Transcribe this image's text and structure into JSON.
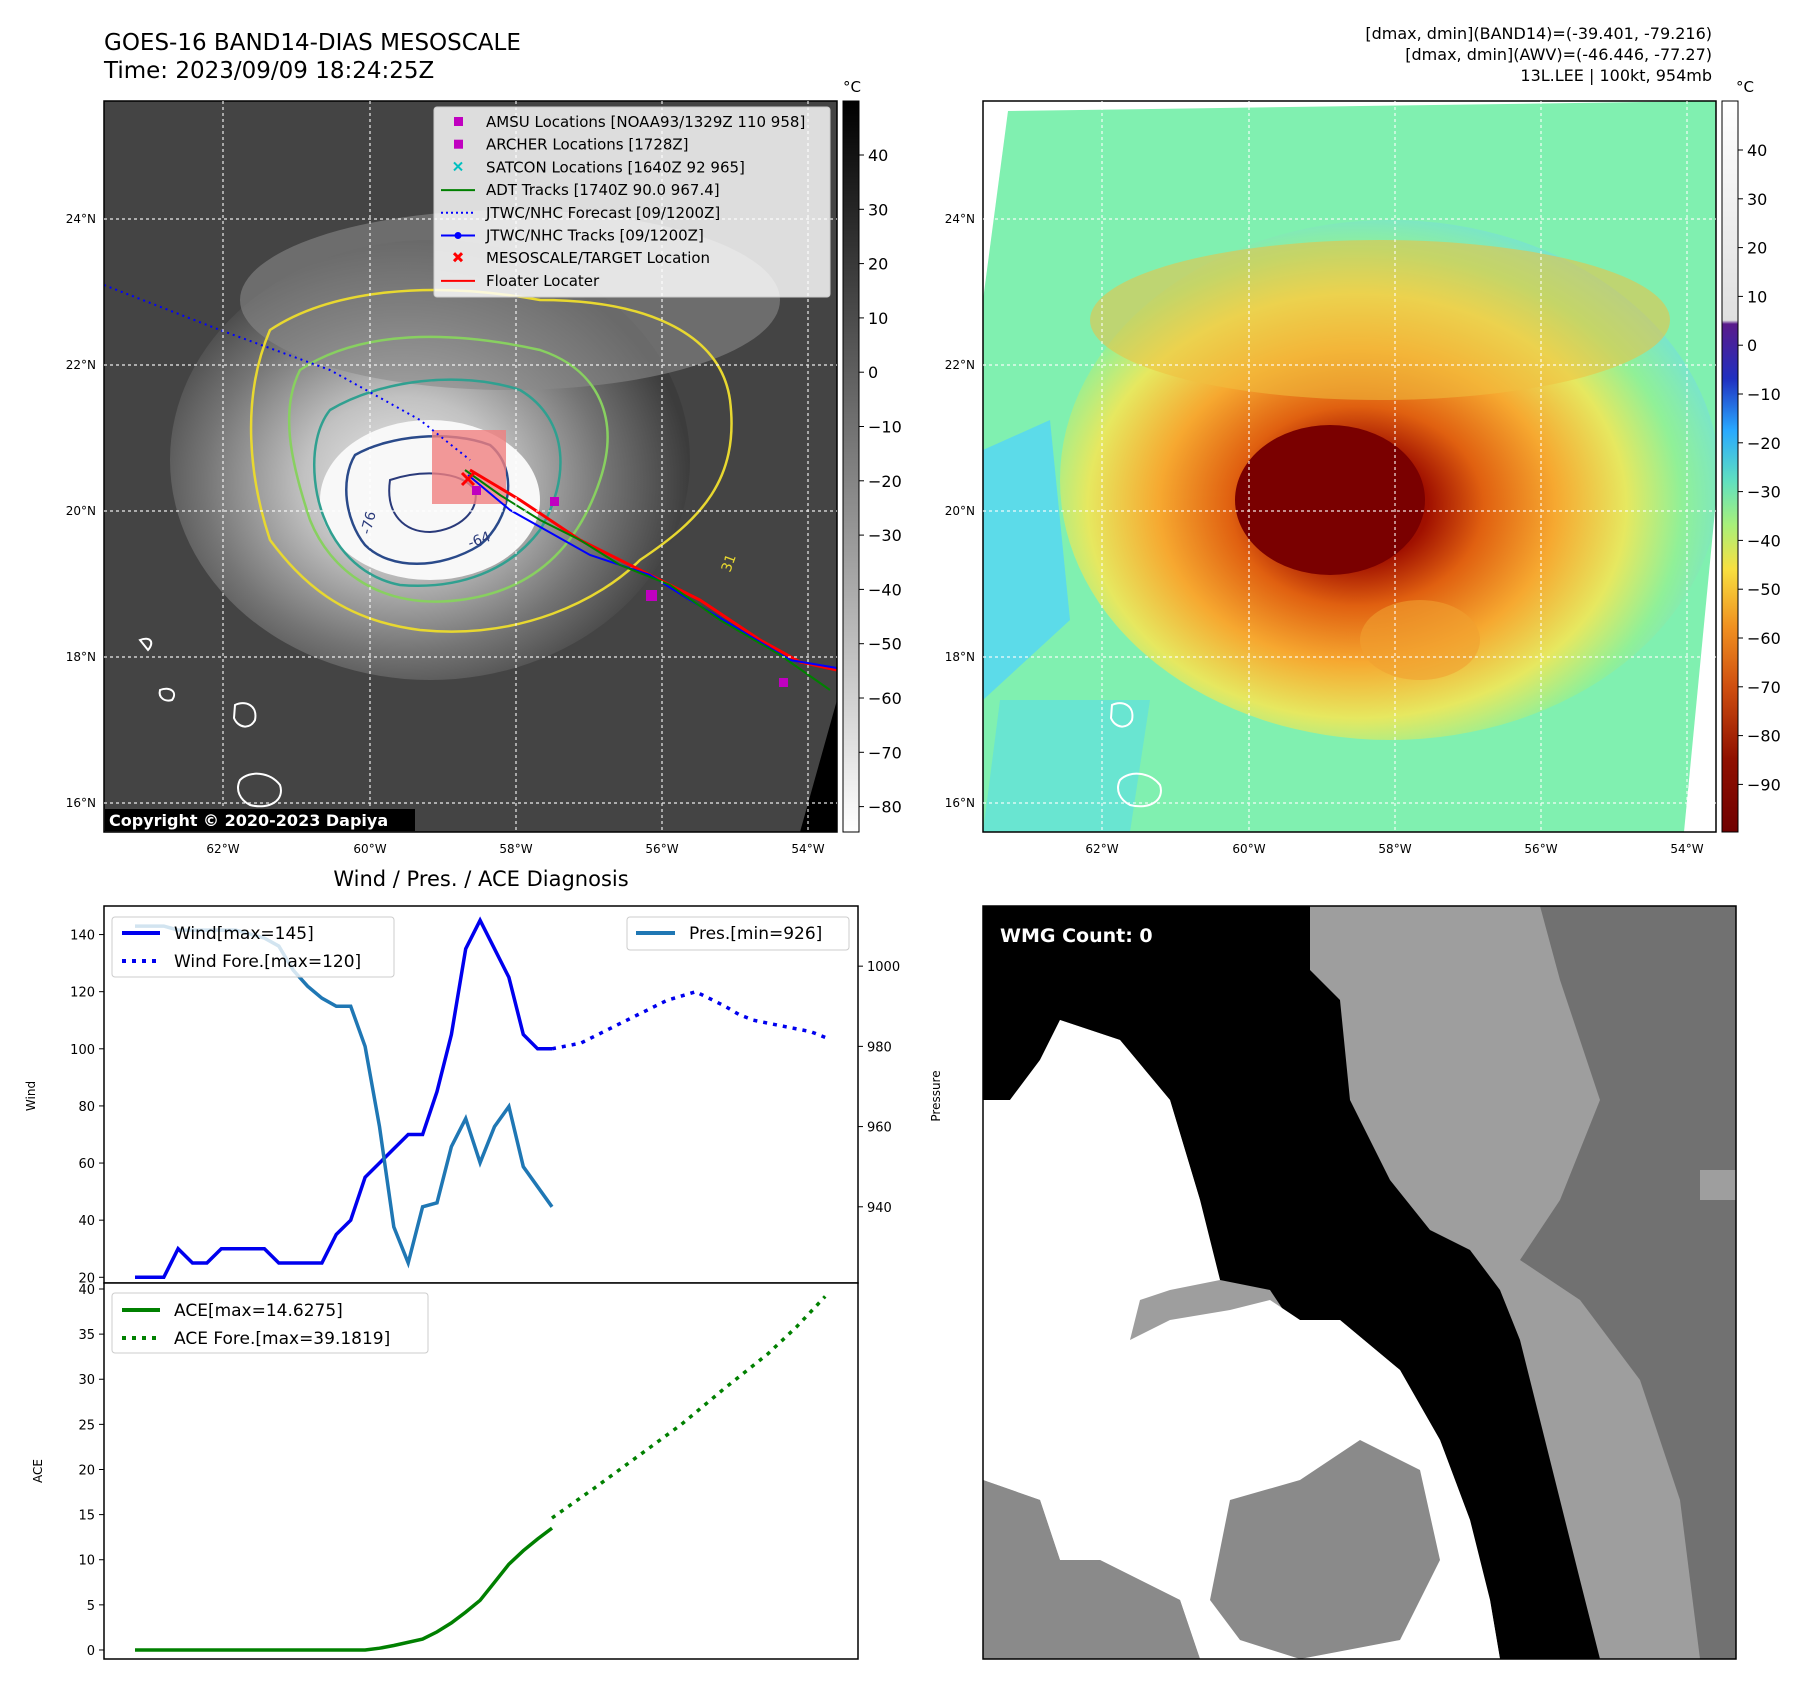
{
  "header": {
    "title_line1": "GOES-16 BAND14-DIAS MESOSCALE",
    "title_line2": "Time: 2023/09/09 18:24:25Z",
    "stats_line1": "[dmax, dmin](BAND14)=(-39.401, -79.216)",
    "stats_line2": "[dmax, dmin](AWV)=(-46.446, -77.27)",
    "stats_line3": "13L.LEE | 100kt, 954mb"
  },
  "map": {
    "lat_labels": [
      "24°N",
      "22°N",
      "20°N",
      "18°N",
      "16°N"
    ],
    "lon_labels": [
      "62°W",
      "60°W",
      "58°W",
      "56°W",
      "54°W"
    ],
    "copyright": "Copyright © 2020-2023 Dapiya",
    "contour_labels": [
      "-76",
      "-64",
      "31"
    ],
    "legend": [
      {
        "label": "AMSU Locations [NOAA93/1329Z 110 958]",
        "marker": "square",
        "color": "#c000c0"
      },
      {
        "label": "ARCHER Locations [1728Z]",
        "marker": "square",
        "color": "#c000c0"
      },
      {
        "label": "SATCON Locations [1640Z 92 965]",
        "marker": "x",
        "color": "#00c0c0"
      },
      {
        "label": "ADT Tracks [1740Z 90.0 967.4]",
        "marker": "line",
        "color": "#008000"
      },
      {
        "label": "JTWC/NHC Forecast [09/1200Z]",
        "marker": "dotted",
        "color": "#0000ff"
      },
      {
        "label": "JTWC/NHC Tracks [09/1200Z]",
        "marker": "line-dot",
        "color": "#0000ff"
      },
      {
        "label": "MESOSCALE/TARGET Location",
        "marker": "cross",
        "color": "#ff0000"
      },
      {
        "label": "Floater Locater",
        "marker": "line",
        "color": "#ff0000"
      }
    ],
    "colorbar_unit": "°C",
    "gray_ticks": [
      "40",
      "30",
      "20",
      "10",
      "0",
      "−10",
      "−20",
      "−30",
      "−40",
      "−50",
      "−60",
      "−70",
      "−80"
    ],
    "color_ticks": [
      "40",
      "30",
      "20",
      "10",
      "0",
      "−10",
      "−20",
      "−30",
      "−40",
      "−50",
      "−60",
      "−70",
      "−80",
      "−90"
    ]
  },
  "chart_data": [
    {
      "type": "line",
      "title": "Wind / Pres. / ACE Diagnosis",
      "ylabel": "Wind",
      "y2label": "Pressure",
      "ylim": [
        18,
        150
      ],
      "y2lim": [
        921,
        1015
      ],
      "yticks": [
        20,
        40,
        60,
        80,
        100,
        120,
        140
      ],
      "y2ticks": [
        940,
        960,
        980,
        1000
      ],
      "x": [
        0,
        1,
        2,
        3,
        4,
        5,
        6,
        7,
        8,
        9,
        10,
        11,
        12,
        13,
        14,
        15,
        16,
        17,
        18,
        19,
        20,
        21,
        22,
        23,
        24,
        25,
        26,
        27,
        28,
        29,
        30,
        31,
        32,
        33,
        34,
        35,
        36,
        37,
        38,
        39,
        40,
        41,
        42,
        43,
        44,
        45,
        46,
        47,
        48
      ],
      "series": [
        {
          "name": "Wind[max=145]",
          "axis": "left",
          "style": "solid",
          "color": "#0000ee",
          "x": [
            0,
            1,
            2,
            3,
            4,
            5,
            6,
            7,
            8,
            9,
            10,
            11,
            12,
            13,
            14,
            15,
            16,
            17,
            18,
            19,
            20,
            21,
            22,
            23,
            24,
            25,
            26,
            27,
            28,
            29
          ],
          "values": [
            20,
            20,
            20,
            30,
            25,
            25,
            30,
            30,
            30,
            30,
            25,
            25,
            25,
            25,
            35,
            40,
            55,
            60,
            65,
            70,
            70,
            85,
            105,
            135,
            145,
            135,
            125,
            105,
            100,
            100
          ]
        },
        {
          "name": "Wind Fore.[max=120]",
          "axis": "left",
          "style": "dotted",
          "color": "#0000ee",
          "x": [
            29,
            31,
            33,
            35,
            37,
            39,
            41,
            42,
            43,
            45,
            47,
            48
          ],
          "values": [
            100,
            102,
            107,
            112,
            117,
            120,
            115,
            112,
            110,
            108,
            106,
            104
          ]
        },
        {
          "name": "Pres.[min=926]",
          "axis": "right",
          "style": "solid",
          "color": "#1f77b4",
          "x": [
            0,
            1,
            2,
            3,
            4,
            5,
            6,
            7,
            8,
            9,
            10,
            11,
            12,
            13,
            14,
            15,
            16,
            17,
            18,
            19,
            20,
            21,
            22,
            23,
            24,
            25,
            26,
            27,
            28,
            29
          ],
          "values": [
            1010,
            1010,
            1010,
            1009,
            1009,
            1009,
            1009,
            1009,
            1008,
            1007,
            1005,
            999,
            995,
            992,
            990,
            990,
            980,
            960,
            935,
            926,
            940,
            941,
            955,
            962,
            951,
            960,
            965,
            950,
            945,
            940
          ]
        }
      ]
    },
    {
      "type": "line",
      "ylabel": "ACE",
      "ylim": [
        -1,
        40
      ],
      "yticks": [
        0,
        5,
        10,
        15,
        20,
        25,
        30,
        35,
        40
      ],
      "series": [
        {
          "name": "ACE[max=14.6275]",
          "style": "solid",
          "color": "#008000",
          "x": [
            0,
            4,
            8,
            12,
            16,
            17,
            18,
            20,
            21,
            22,
            23,
            24,
            25,
            26,
            27,
            28,
            29
          ],
          "values": [
            0,
            0,
            0,
            0,
            0,
            0.2,
            0.5,
            1.2,
            2,
            3,
            4.2,
            5.5,
            7.5,
            9.5,
            11,
            12.3,
            13.5
          ]
        },
        {
          "name": "ACE Fore.[max=39.1819]",
          "style": "dotted",
          "color": "#008000",
          "x": [
            29,
            32,
            35,
            38,
            41,
            44,
            46,
            48
          ],
          "values": [
            14.6275,
            18,
            21.5,
            25,
            29,
            32.8,
            35.8,
            39.1819
          ]
        }
      ]
    }
  ],
  "wmg": {
    "label": "WMG Count: 0"
  }
}
